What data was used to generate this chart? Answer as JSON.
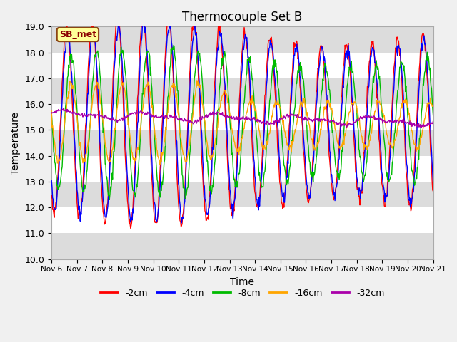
{
  "title": "Thermocouple Set B",
  "xlabel": "Time",
  "ylabel": "Temperature",
  "ylim": [
    10.0,
    19.0
  ],
  "yticks": [
    10.0,
    11.0,
    12.0,
    13.0,
    14.0,
    15.0,
    16.0,
    17.0,
    18.0,
    19.0
  ],
  "xtick_labels": [
    "Nov 6",
    "Nov 7",
    "Nov 8",
    "Nov 9",
    "Nov 10",
    "Nov 11",
    "Nov 12",
    "Nov 13",
    "Nov 14",
    "Nov 15",
    "Nov 16",
    "Nov 17",
    "Nov 18",
    "Nov 19",
    "Nov 20",
    "Nov 21"
  ],
  "annotation_text": "SB_met",
  "annotation_facecolor": "#FFFF99",
  "annotation_edgecolor": "#8B4513",
  "annotation_textcolor": "#8B0000",
  "line_colors": [
    "#FF0000",
    "#0000FF",
    "#00BB00",
    "#FFA500",
    "#AA00AA"
  ],
  "line_labels": [
    "-2cm",
    "-4cm",
    "-8cm",
    "-16cm",
    "-32cm"
  ],
  "line_lw": 1.0,
  "bg_bands_white": "#FFFFFF",
  "bg_bands_gray": "#DCDCDC",
  "fig_bg": "#F0F0F0",
  "spine_color": "#AAAAAA"
}
